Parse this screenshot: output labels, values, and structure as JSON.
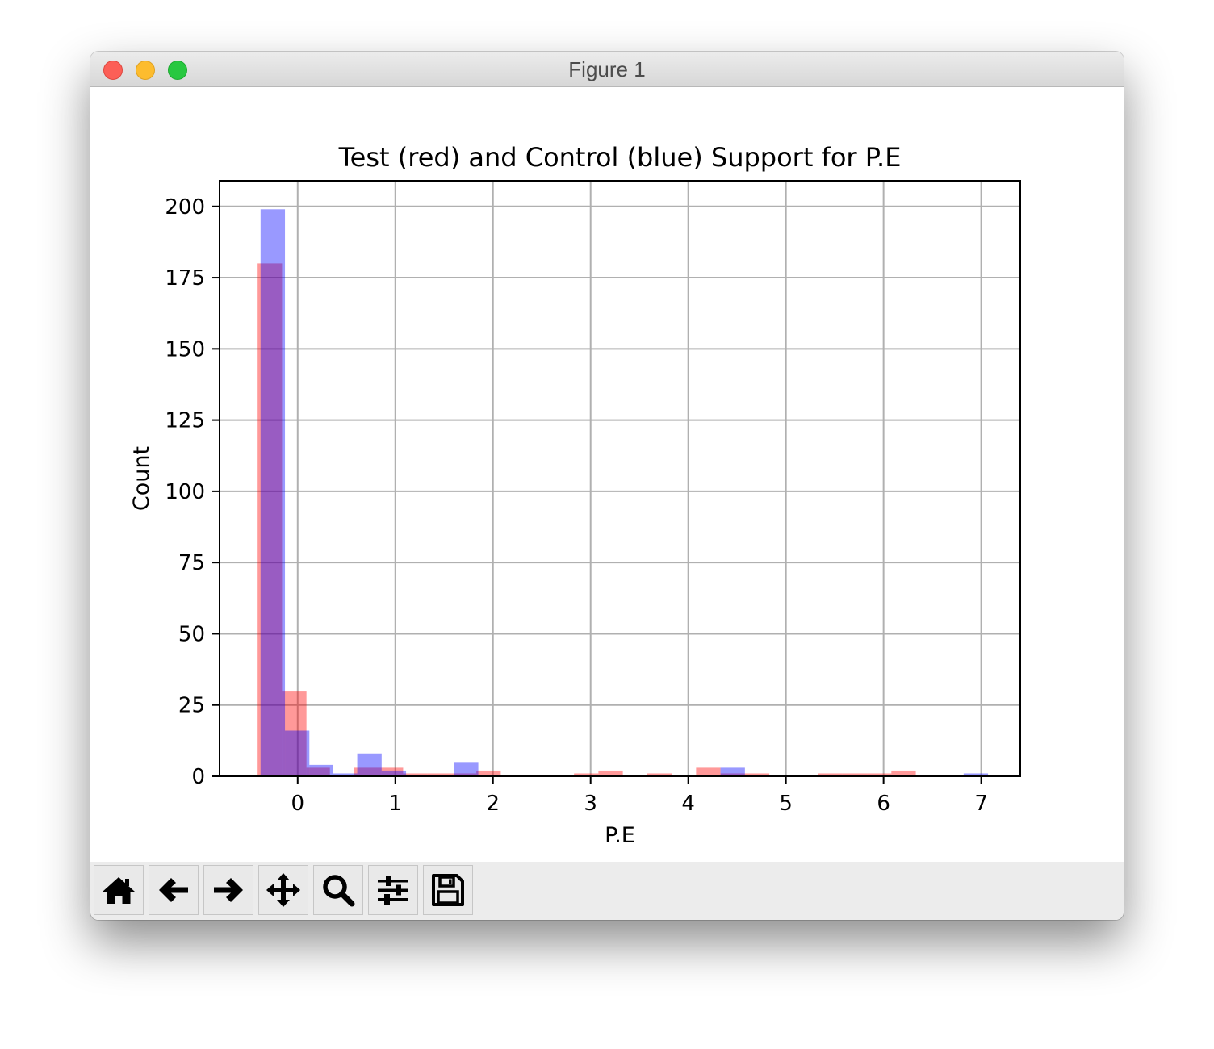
{
  "window": {
    "title": "Figure 1"
  },
  "toolbar": {
    "buttons": [
      {
        "name": "home-button",
        "icon": "home-icon"
      },
      {
        "name": "back-button",
        "icon": "arrow-left-icon"
      },
      {
        "name": "forward-button",
        "icon": "arrow-right-icon"
      },
      {
        "name": "pan-button",
        "icon": "move-arrows-icon"
      },
      {
        "name": "zoom-button",
        "icon": "magnifier-icon"
      },
      {
        "name": "configure-subplots-button",
        "icon": "sliders-icon"
      },
      {
        "name": "save-button",
        "icon": "floppy-disk-icon"
      }
    ]
  },
  "chart_data": {
    "type": "bar",
    "title": "Test (red) and Control (blue) Support for P.E",
    "xlabel": "P.E",
    "ylabel": "Count",
    "xlim": [
      -0.8,
      7.4
    ],
    "ylim": [
      0,
      209
    ],
    "xticks": [
      "0",
      "1",
      "2",
      "3",
      "4",
      "5",
      "6",
      "7"
    ],
    "yticks": [
      "0",
      "25",
      "50",
      "75",
      "100",
      "125",
      "150",
      "175",
      "200"
    ],
    "grid": true,
    "series": [
      {
        "color": "#ff0000",
        "alpha": 0.4,
        "bins": [
          {
            "x0": -0.41,
            "x1": -0.16,
            "count": 180
          },
          {
            "x0": -0.16,
            "x1": 0.09,
            "count": 30
          },
          {
            "x0": 0.09,
            "x1": 0.33,
            "count": 3
          },
          {
            "x0": 0.33,
            "x1": 0.58,
            "count": 0
          },
          {
            "x0": 0.58,
            "x1": 0.83,
            "count": 3
          },
          {
            "x0": 0.83,
            "x1": 1.08,
            "count": 3
          },
          {
            "x0": 1.08,
            "x1": 1.33,
            "count": 1
          },
          {
            "x0": 1.33,
            "x1": 1.58,
            "count": 1
          },
          {
            "x0": 1.58,
            "x1": 1.83,
            "count": 1
          },
          {
            "x0": 1.83,
            "x1": 2.08,
            "count": 2
          },
          {
            "x0": 2.83,
            "x1": 3.08,
            "count": 1
          },
          {
            "x0": 3.08,
            "x1": 3.33,
            "count": 2
          },
          {
            "x0": 3.58,
            "x1": 3.83,
            "count": 1
          },
          {
            "x0": 4.08,
            "x1": 4.33,
            "count": 3
          },
          {
            "x0": 4.33,
            "x1": 4.58,
            "count": 1
          },
          {
            "x0": 4.58,
            "x1": 4.83,
            "count": 1
          },
          {
            "x0": 5.33,
            "x1": 5.58,
            "count": 1
          },
          {
            "x0": 5.58,
            "x1": 5.83,
            "count": 1
          },
          {
            "x0": 5.83,
            "x1": 6.08,
            "count": 1
          },
          {
            "x0": 6.08,
            "x1": 6.33,
            "count": 2
          }
        ]
      },
      {
        "color": "#0000ff",
        "alpha": 0.4,
        "bins": [
          {
            "x0": -0.38,
            "x1": -0.13,
            "count": 199
          },
          {
            "x0": -0.13,
            "x1": 0.12,
            "count": 16
          },
          {
            "x0": 0.12,
            "x1": 0.36,
            "count": 4
          },
          {
            "x0": 0.36,
            "x1": 0.61,
            "count": 1
          },
          {
            "x0": 0.61,
            "x1": 0.86,
            "count": 8
          },
          {
            "x0": 0.86,
            "x1": 1.11,
            "count": 2
          },
          {
            "x0": 1.6,
            "x1": 1.85,
            "count": 5
          },
          {
            "x0": 4.33,
            "x1": 4.58,
            "count": 3
          },
          {
            "x0": 6.82,
            "x1": 7.07,
            "count": 1
          }
        ]
      }
    ]
  }
}
